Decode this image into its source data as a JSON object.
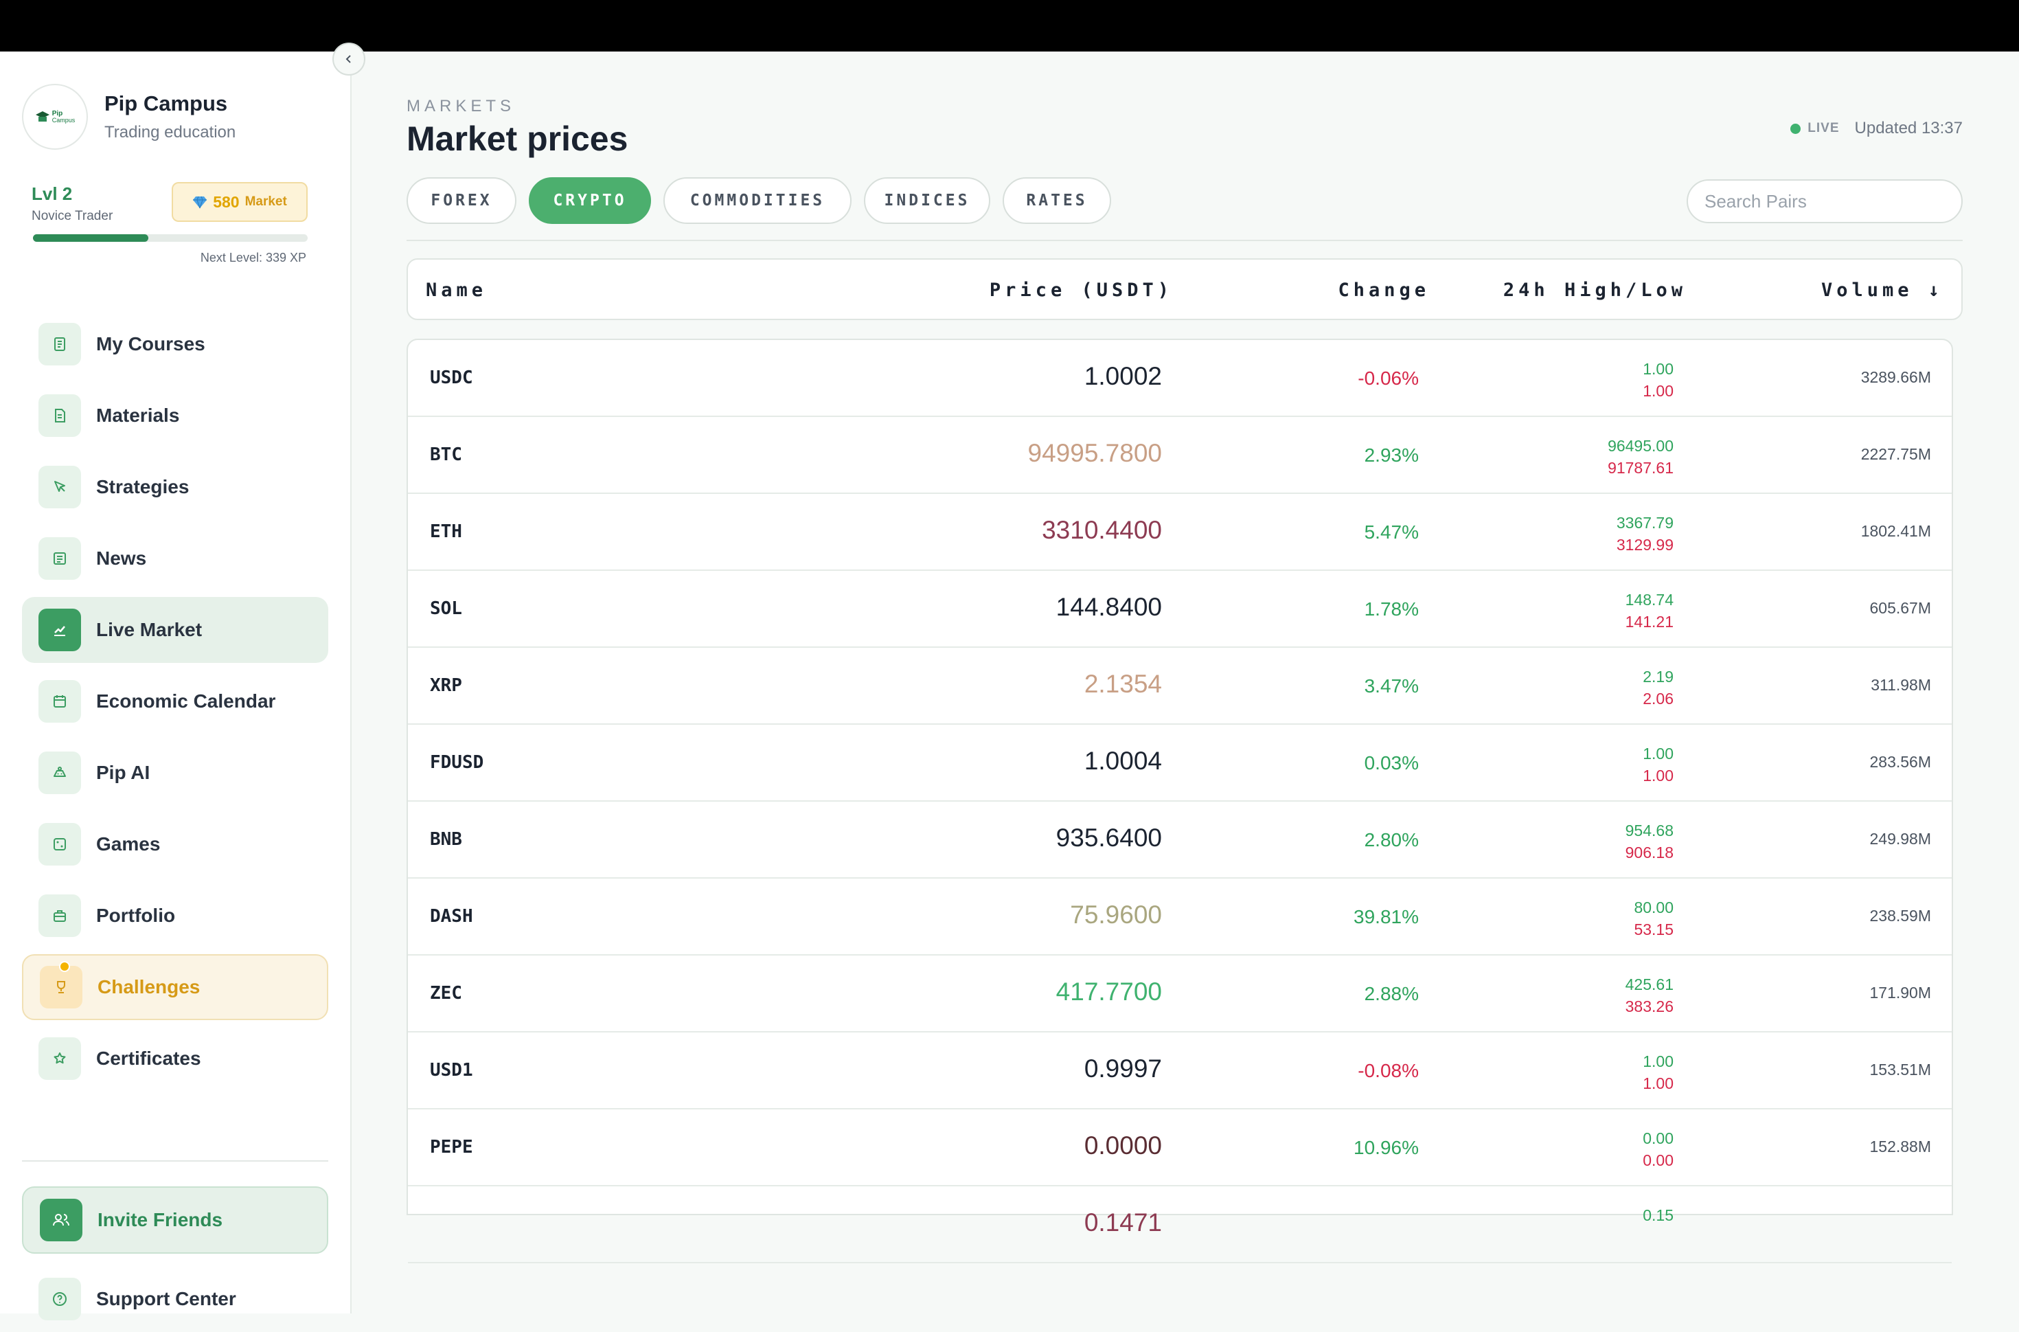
{
  "brand": {
    "name": "Pip Campus",
    "subtitle": "Trading education",
    "logo_text_1": "Pip",
    "logo_text_2": "Campus"
  },
  "level": {
    "title": "Lvl 2",
    "rank": "Novice Trader",
    "next_level": "Next Level: 339 XP",
    "progress": 0.42
  },
  "badge": {
    "value": "580",
    "label": "Market",
    "icon": "gem-icon"
  },
  "nav": [
    {
      "label": "My Courses",
      "icon": "book-icon"
    },
    {
      "label": "Materials",
      "icon": "document-icon"
    },
    {
      "label": "Strategies",
      "icon": "cursor-icon"
    },
    {
      "label": "News",
      "icon": "newspaper-icon"
    },
    {
      "label": "Live Market",
      "icon": "chart-icon"
    },
    {
      "label": "Economic Calendar",
      "icon": "calendar-icon"
    },
    {
      "label": "Pip AI",
      "icon": "robot-icon"
    },
    {
      "label": "Games",
      "icon": "dice-icon"
    },
    {
      "label": "Portfolio",
      "icon": "briefcase-icon"
    },
    {
      "label": "Challenges",
      "icon": "trophy-icon"
    },
    {
      "label": "Certificates",
      "icon": "award-icon"
    }
  ],
  "invite": {
    "label": "Invite Friends"
  },
  "support": {
    "label": "Support Center"
  },
  "header": {
    "eyebrow": "MARKETS",
    "title": "Market prices",
    "live": "LIVE",
    "updated": "Updated 13:37"
  },
  "tabs": [
    "FOREX",
    "CRYPTO",
    "COMMODITIES",
    "INDICES",
    "RATES"
  ],
  "search": {
    "placeholder": "Search Pairs"
  },
  "columns": {
    "name": "Name",
    "price": "Price (USDT)",
    "change": "Change",
    "highlow": "24h High/Low",
    "volume": "Volume ↓"
  },
  "rows": [
    {
      "name": "USDC",
      "price": "1.0002",
      "price_color": "#1b2330",
      "change": "-0.06%",
      "change_dir": "neg",
      "high": "1.00",
      "low": "1.00",
      "volume": "3289.66M"
    },
    {
      "name": "BTC",
      "price": "94995.7800",
      "price_color": "#c89f85",
      "change": "2.93%",
      "change_dir": "pos",
      "high": "96495.00",
      "low": "91787.61",
      "volume": "2227.75M"
    },
    {
      "name": "ETH",
      "price": "3310.4400",
      "price_color": "#8d3b52",
      "change": "5.47%",
      "change_dir": "pos",
      "high": "3367.79",
      "low": "3129.99",
      "volume": "1802.41M"
    },
    {
      "name": "SOL",
      "price": "144.8400",
      "price_color": "#1b2330",
      "change": "1.78%",
      "change_dir": "pos",
      "high": "148.74",
      "low": "141.21",
      "volume": "605.67M"
    },
    {
      "name": "XRP",
      "price": "2.1354",
      "price_color": "#c89f85",
      "change": "3.47%",
      "change_dir": "pos",
      "high": "2.19",
      "low": "2.06",
      "volume": "311.98M"
    },
    {
      "name": "FDUSD",
      "price": "1.0004",
      "price_color": "#1b2330",
      "change": "0.03%",
      "change_dir": "pos",
      "high": "1.00",
      "low": "1.00",
      "volume": "283.56M"
    },
    {
      "name": "BNB",
      "price": "935.6400",
      "price_color": "#1b2330",
      "change": "2.80%",
      "change_dir": "pos",
      "high": "954.68",
      "low": "906.18",
      "volume": "249.98M"
    },
    {
      "name": "DASH",
      "price": "75.9600",
      "price_color": "#a9a67f",
      "change": "39.81%",
      "change_dir": "pos",
      "high": "80.00",
      "low": "53.15",
      "volume": "238.59M"
    },
    {
      "name": "ZEC",
      "price": "417.7700",
      "price_color": "#3fb26f",
      "change": "2.88%",
      "change_dir": "pos",
      "high": "425.61",
      "low": "383.26",
      "volume": "171.90M"
    },
    {
      "name": "USD1",
      "price": "0.9997",
      "price_color": "#1b2330",
      "change": "-0.08%",
      "change_dir": "neg",
      "high": "1.00",
      "low": "1.00",
      "volume": "153.51M"
    },
    {
      "name": "PEPE",
      "price": "0.0000",
      "price_color": "#5a2d33",
      "change": "10.96%",
      "change_dir": "pos",
      "high": "0.00",
      "low": "0.00",
      "volume": "152.88M"
    },
    {
      "name": "",
      "price": "0.1471",
      "price_color": "#8d3b52",
      "change": "",
      "change_dir": "pos",
      "high": "0.15",
      "low": "",
      "volume": ""
    }
  ]
}
